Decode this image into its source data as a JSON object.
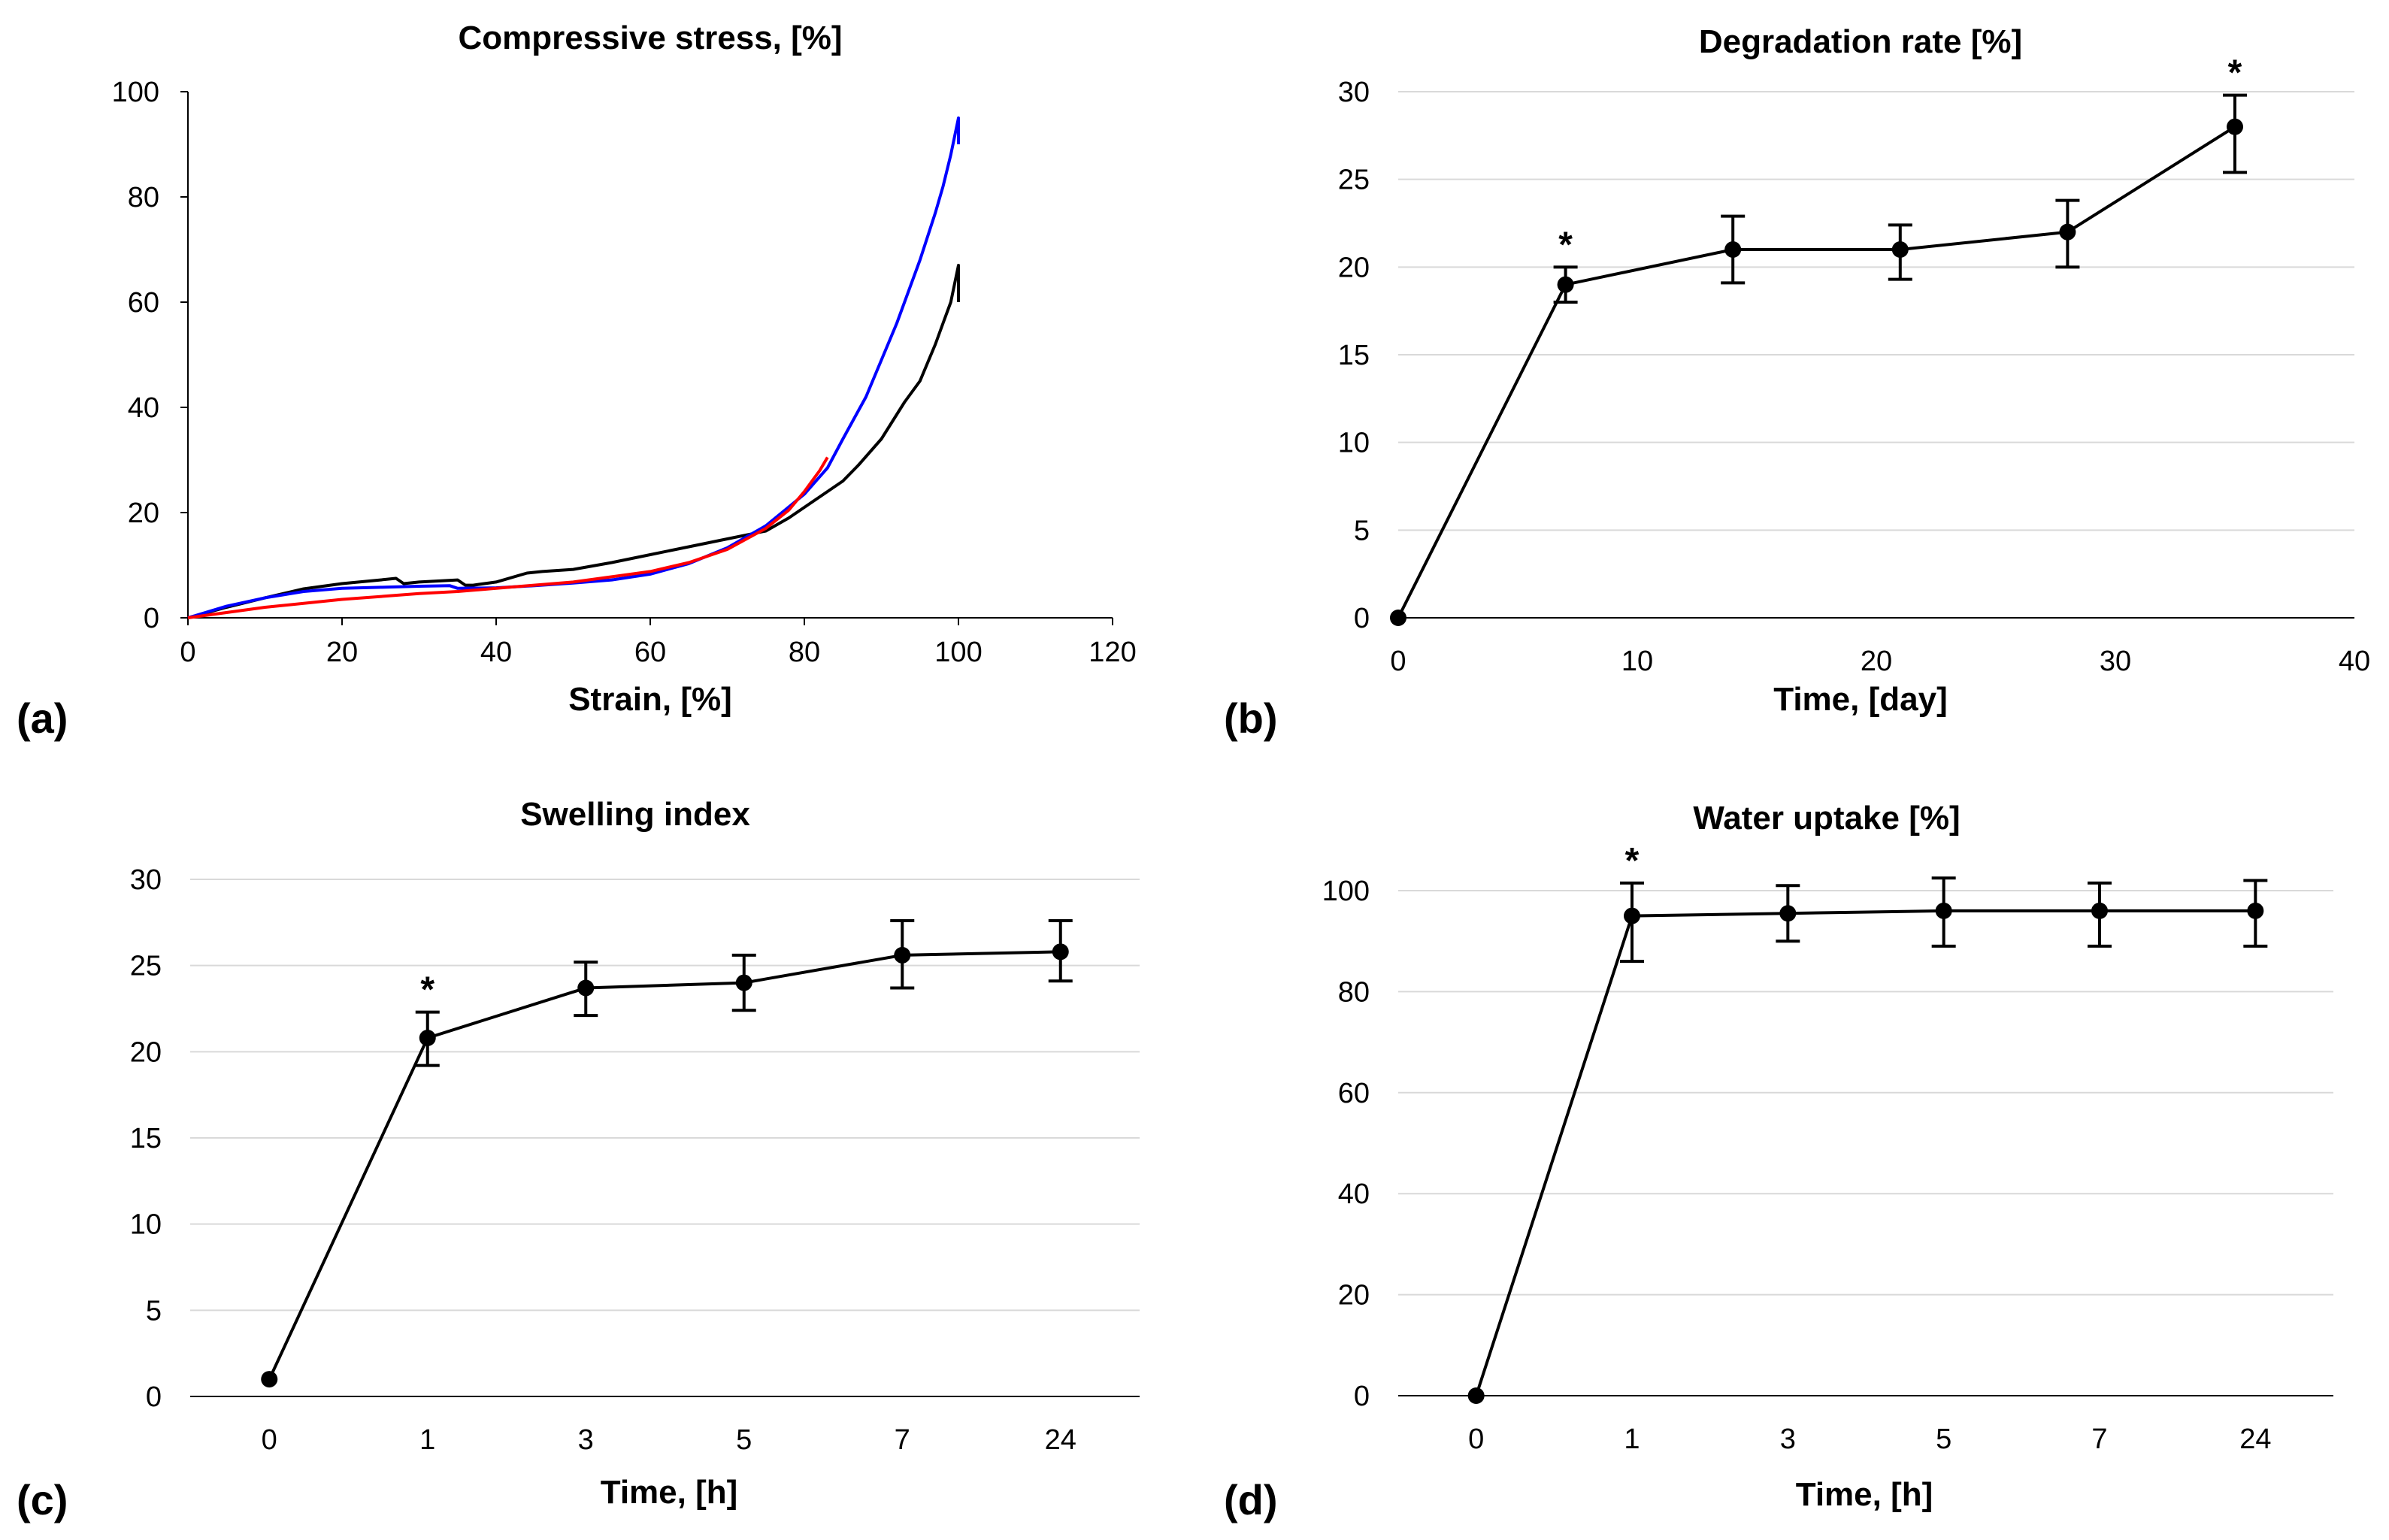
{
  "chart_data": [
    {
      "panel": "(a)",
      "type": "line",
      "title": "Compressive stress, [%]",
      "xlabel": "Strain, [%]",
      "ylabel": "",
      "xlim": [
        0,
        120
      ],
      "ylim": [
        0,
        100
      ],
      "xticks": [
        "0",
        "20",
        "40",
        "60",
        "80",
        "100",
        "120"
      ],
      "yticks": [
        "0",
        "20",
        "40",
        "60",
        "80",
        "100"
      ],
      "grid": false,
      "series": [
        {
          "name": "black",
          "color": "#000000",
          "x": [
            0,
            5,
            10,
            15,
            20,
            25,
            27,
            28,
            30,
            35,
            36,
            37,
            40,
            44,
            46,
            50,
            55,
            60,
            65,
            70,
            75,
            78,
            80,
            83,
            85,
            87,
            90,
            93,
            95,
            97,
            98,
            99,
            100,
            100
          ],
          "y": [
            0,
            2,
            3.8,
            5.5,
            6.5,
            7.2,
            7.5,
            6.5,
            6.8,
            7.2,
            6.2,
            6.2,
            6.8,
            8.5,
            8.8,
            9.2,
            10.5,
            12,
            13.5,
            15,
            16.5,
            19,
            21,
            24,
            26,
            29,
            34,
            41,
            45,
            52,
            56,
            60,
            67,
            60
          ]
        },
        {
          "name": "blue",
          "color": "#0000ff",
          "x": [
            0,
            5,
            10,
            15,
            20,
            25,
            30,
            34,
            35,
            40,
            45,
            50,
            55,
            60,
            65,
            70,
            75,
            80,
            83,
            85,
            88,
            90,
            92,
            95,
            97,
            98,
            99,
            100,
            100
          ],
          "y": [
            0,
            2.2,
            3.8,
            5,
            5.6,
            5.8,
            6,
            6.1,
            5.6,
            5.7,
            6.1,
            6.6,
            7.2,
            8.3,
            10.3,
            13.3,
            17.5,
            23.5,
            28.5,
            34,
            42,
            49,
            56,
            68,
            77,
            82,
            88,
            95,
            90
          ]
        },
        {
          "name": "red",
          "color": "#ff0000",
          "x": [
            0,
            5,
            10,
            20,
            30,
            35,
            40,
            50,
            60,
            65,
            70,
            75,
            78,
            80,
            82,
            83
          ],
          "y": [
            0,
            1,
            2,
            3.5,
            4.6,
            5,
            5.6,
            6.8,
            8.8,
            10.5,
            13,
            17,
            20.5,
            24,
            28,
            30.5
          ]
        }
      ]
    },
    {
      "panel": "(b)",
      "type": "line",
      "title": "Degradation rate [%]",
      "xlabel": "Time, [day]",
      "ylabel": "",
      "xlim": [
        0,
        40
      ],
      "ylim": [
        0,
        30
      ],
      "xticks": [
        "0",
        "10",
        "20",
        "30",
        "40"
      ],
      "yticks": [
        "0",
        "5",
        "10",
        "15",
        "20",
        "25",
        "30"
      ],
      "grid": true,
      "x": [
        0,
        7,
        14,
        21,
        28,
        35
      ],
      "values": [
        0,
        19,
        21,
        21,
        22,
        28
      ],
      "err_low": [
        0,
        1,
        1.9,
        1.7,
        2,
        2.6
      ],
      "err_high": [
        0,
        1,
        1.9,
        1.4,
        1.8,
        1.8
      ],
      "significant": [
        "",
        "*",
        "",
        "",
        "",
        "*"
      ]
    },
    {
      "panel": "(c)",
      "type": "line",
      "title": "Swelling index",
      "xlabel": "Time, [h]",
      "ylabel": "",
      "categories": [
        "0",
        "1",
        "3",
        "5",
        "7",
        "24"
      ],
      "ylim": [
        0,
        30
      ],
      "yticks": [
        "0",
        "5",
        "10",
        "15",
        "20",
        "25",
        "30"
      ],
      "grid": true,
      "values": [
        1,
        20.8,
        23.7,
        24,
        25.6,
        25.8
      ],
      "err_low": [
        0,
        1.6,
        1.6,
        1.6,
        1.9,
        1.7
      ],
      "err_high": [
        0,
        1.5,
        1.5,
        1.6,
        2,
        1.8
      ],
      "significant": [
        "",
        "*",
        "",
        "",
        "",
        ""
      ]
    },
    {
      "panel": "(d)",
      "type": "line",
      "title": "Water uptake [%]",
      "xlabel": "Time, [h]",
      "ylabel": "",
      "categories": [
        "0",
        "1",
        "3",
        "5",
        "7",
        "24"
      ],
      "ylim": [
        0,
        100
      ],
      "yticks": [
        "0",
        "20",
        "40",
        "60",
        "80",
        "100"
      ],
      "grid": true,
      "values": [
        0,
        95,
        95.5,
        96,
        96,
        96
      ],
      "err_low": [
        0,
        9,
        5.5,
        7,
        7,
        7
      ],
      "err_high": [
        0,
        6.5,
        5.5,
        6.5,
        5.5,
        6
      ],
      "significant": [
        "",
        "*",
        "",
        "",
        "",
        ""
      ]
    }
  ]
}
